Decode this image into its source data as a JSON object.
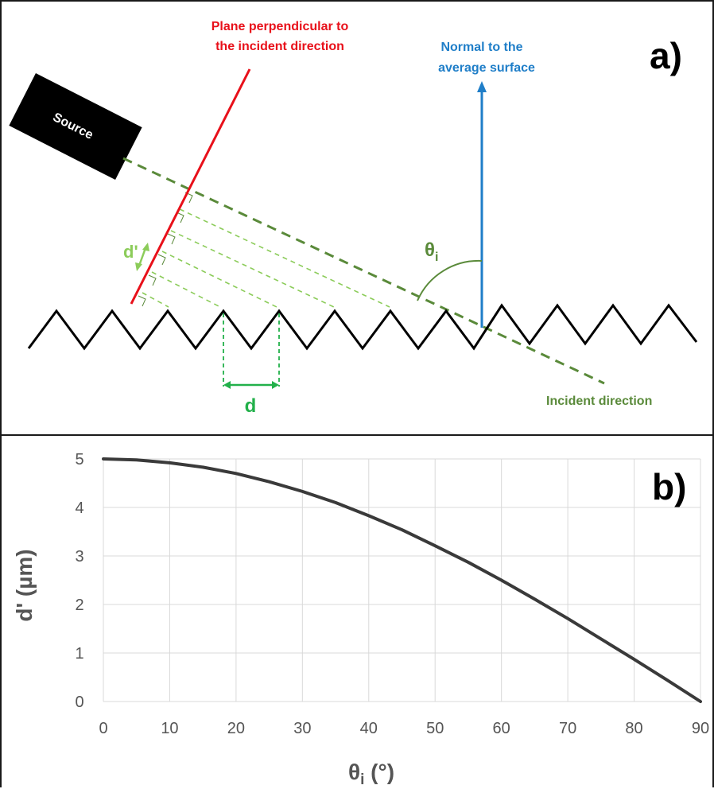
{
  "panel_a": {
    "label": "a)",
    "source_label": "Source",
    "plane_label_line1": "Plane perpendicular to",
    "plane_label_line2": "the incident direction",
    "normal_label_line1": "Normal to the",
    "normal_label_line2": "average surface",
    "angle_symbol": "θ",
    "angle_subscript": "i",
    "d_prime_label": "d'",
    "d_label": "d",
    "incident_label": "Incident direction",
    "colors": {
      "plane": "#e8101a",
      "normal": "#1f7ec8",
      "incident": "#5a8a3a",
      "rays": "#8ccc5a",
      "d_marker": "#22b04a",
      "surface": "#000000",
      "source": "#000000"
    }
  },
  "panel_b": {
    "label": "b)",
    "chart_data": {
      "type": "line",
      "xlabel": "θi (°)",
      "xlabel_symbol": "θ",
      "xlabel_subscript": "i",
      "xlabel_unit": " (°)",
      "ylabel": "d' (µm)",
      "xlim": [
        0,
        90
      ],
      "ylim": [
        0,
        5
      ],
      "x_ticks": [
        "0",
        "10",
        "20",
        "30",
        "40",
        "50",
        "60",
        "70",
        "80",
        "90"
      ],
      "y_ticks": [
        "0",
        "1",
        "2",
        "3",
        "4",
        "5"
      ],
      "grid": true,
      "series": [
        {
          "x": [
            0,
            5,
            10,
            15,
            20,
            25,
            30,
            35,
            40,
            45,
            50,
            55,
            60,
            65,
            70,
            75,
            80,
            85,
            90
          ],
          "values": [
            5.0,
            4.98,
            4.92,
            4.83,
            4.7,
            4.53,
            4.33,
            4.1,
            3.83,
            3.54,
            3.21,
            2.87,
            2.5,
            2.11,
            1.71,
            1.29,
            0.87,
            0.44,
            0.0
          ],
          "color": "#3a3a3a"
        }
      ]
    }
  }
}
